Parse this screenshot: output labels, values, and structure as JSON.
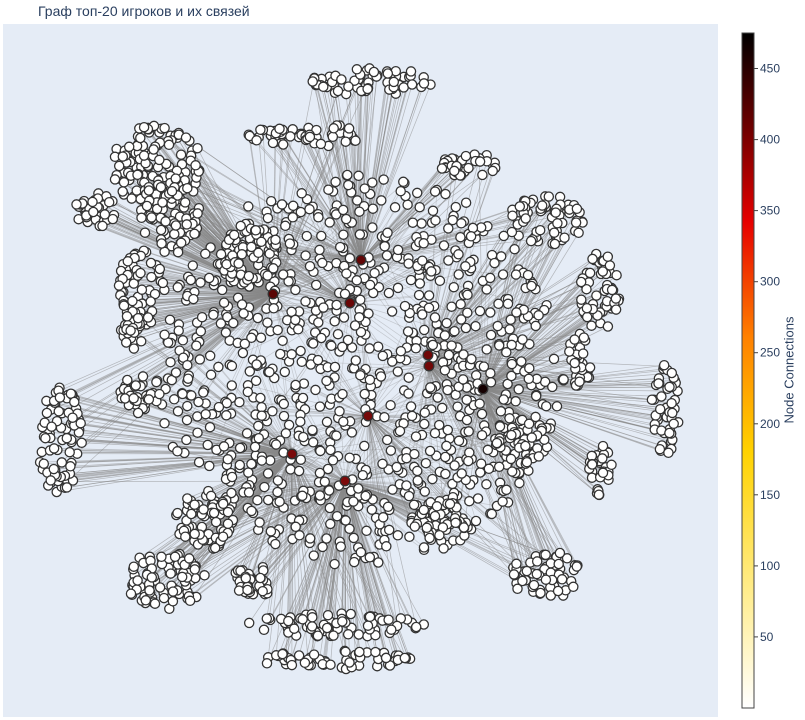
{
  "chart_data": {
    "type": "network",
    "title": "Граф топ-20 игроков и их связей",
    "colorbar": {
      "title": "Node Connections",
      "colorscale": "Hot",
      "range": [
        0,
        475
      ],
      "ticks": [
        50,
        100,
        150,
        200,
        250,
        300,
        350,
        400,
        450
      ]
    },
    "hubs": [
      {
        "connections": 470,
        "fill": "#150000"
      },
      {
        "connections": 385,
        "fill": "#5a0505"
      },
      {
        "connections": 380,
        "fill": "#620606"
      },
      {
        "connections": 375,
        "fill": "#6a0707"
      },
      {
        "connections": 370,
        "fill": "#700808"
      },
      {
        "connections": 368,
        "fill": "#720808"
      },
      {
        "connections": 365,
        "fill": "#760909"
      },
      {
        "connections": 362,
        "fill": "#7a0909"
      },
      {
        "connections": 360,
        "fill": "#7c0a0a"
      }
    ],
    "leaf_node_color": "#ffffff",
    "edge_color": "#888888",
    "grid": false,
    "background": "#e5ecf6"
  }
}
